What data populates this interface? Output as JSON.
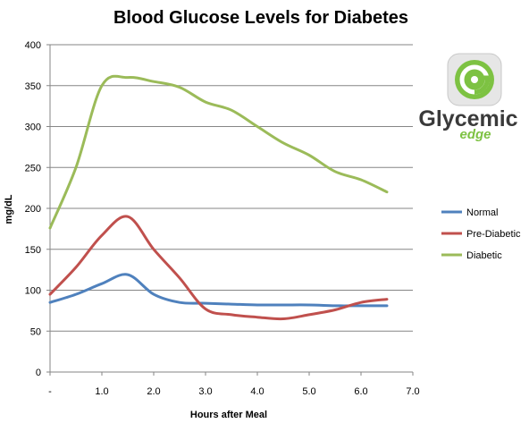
{
  "chart_data": {
    "type": "line",
    "title": "Blood Glucose Levels for Diabetes",
    "xlabel": "Hours after Meal",
    "ylabel": "mg/dL",
    "xlim": [
      0,
      7
    ],
    "ylim": [
      0,
      400
    ],
    "x_ticks": [
      "-",
      "1.0",
      "2.0",
      "3.0",
      "4.0",
      "5.0",
      "6.0",
      "7.0"
    ],
    "y_ticks": [
      "0",
      "50",
      "100",
      "150",
      "200",
      "250",
      "300",
      "350",
      "400"
    ],
    "grid": true,
    "legend_position": "right",
    "x": [
      0,
      0.5,
      1.0,
      1.5,
      2.0,
      2.5,
      3.0,
      3.5,
      4.0,
      4.5,
      5.0,
      5.5,
      6.0,
      6.5
    ],
    "series": [
      {
        "name": "Normal",
        "color": "#4f81bd",
        "values": [
          85,
          95,
          108,
          119,
          95,
          85,
          84,
          83,
          82,
          82,
          82,
          81,
          81,
          81
        ]
      },
      {
        "name": "Pre-Diabetic",
        "color": "#c0504d",
        "values": [
          95,
          128,
          167,
          190,
          150,
          115,
          77,
          70,
          67,
          65,
          70,
          76,
          85,
          89
        ]
      },
      {
        "name": "Diabetic",
        "color": "#9bbb59",
        "values": [
          176,
          250,
          350,
          360,
          355,
          348,
          330,
          320,
          300,
          280,
          265,
          245,
          235,
          220
        ]
      }
    ]
  },
  "logo": {
    "brand_name": "Glycemic",
    "brand_sub": "edge",
    "colors": {
      "green": "#7dc242",
      "dark": "#3a3a3a"
    }
  }
}
